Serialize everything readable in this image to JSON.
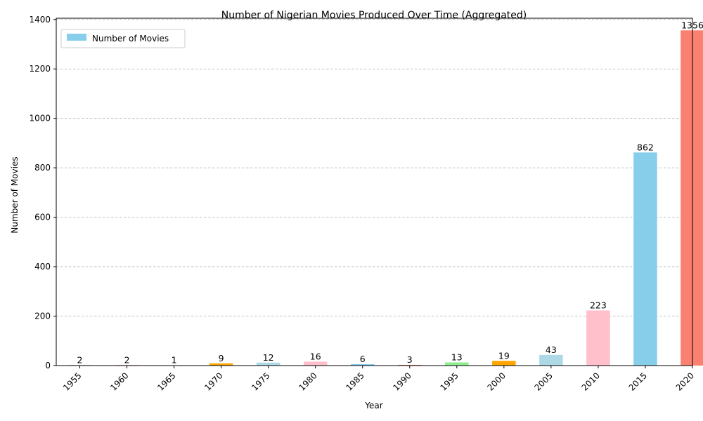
{
  "chart_data": {
    "type": "bar",
    "title": "Number of Nigerian Movies Produced Over Time (Aggregated)",
    "xlabel": "Year",
    "ylabel": "Number of Movies",
    "categories": [
      "1955",
      "1960",
      "1965",
      "1970",
      "1975",
      "1980",
      "1985",
      "1990",
      "1995",
      "2000",
      "2005",
      "2010",
      "2015",
      "2020"
    ],
    "series": [
      {
        "name": "Number of Movies",
        "values": [
          2,
          2,
          1,
          9,
          12,
          16,
          6,
          3,
          13,
          19,
          43,
          223,
          862,
          1356
        ]
      }
    ],
    "bar_colors": [
      "#87ceeb",
      "#fa8072",
      "#90ee90",
      "#ffa500",
      "#add8e6",
      "#ffc0cb",
      "#87ceeb",
      "#fa8072",
      "#90ee90",
      "#ffa500",
      "#add8e6",
      "#ffc0cb",
      "#87ceeb",
      "#fa8072"
    ],
    "legend_color": "#87ceeb",
    "ylim": [
      0,
      1405
    ],
    "yticks": [
      0,
      200,
      400,
      600,
      800,
      1000,
      1200,
      1400
    ],
    "grid": "y",
    "legend_position": "top-left",
    "xtick_rotation": 45
  }
}
